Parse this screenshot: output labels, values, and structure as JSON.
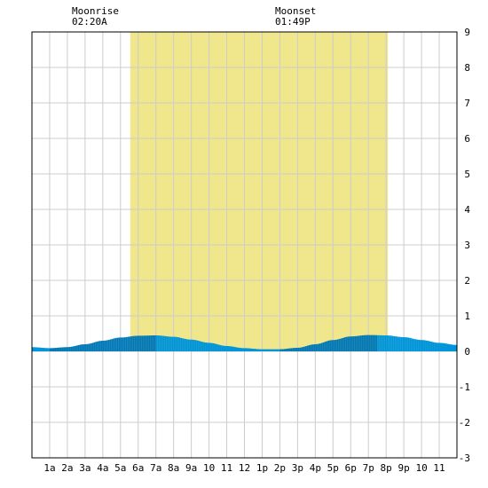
{
  "chart_data": {
    "type": "area",
    "title": "",
    "xlabel": "",
    "ylabel": "",
    "moon": {
      "rise_label": "Moonrise",
      "rise_time": "02:20A",
      "set_label": "Moonset",
      "set_time": "01:49P"
    },
    "x_ticks": [
      "1a",
      "2a",
      "3a",
      "4a",
      "5a",
      "6a",
      "7a",
      "8a",
      "9a",
      "10",
      "11",
      "12",
      "1p",
      "2p",
      "3p",
      "4p",
      "5p",
      "6p",
      "7p",
      "8p",
      "9p",
      "10",
      "11"
    ],
    "y_ticks": [
      "9",
      "8",
      "7",
      "6",
      "5",
      "4",
      "3",
      "2",
      "1",
      "0",
      "-1",
      "-2",
      "-3"
    ],
    "xlim_hours": [
      0,
      24
    ],
    "ylim": [
      -3,
      9
    ],
    "grid": true,
    "daylight_hours": {
      "start": 5.55,
      "end": 20.1,
      "color": "#f0e68c"
    },
    "tide_series": {
      "name": "",
      "x_hours": [
        0,
        1,
        2,
        3,
        4,
        5,
        6,
        7,
        8,
        9,
        10,
        11,
        12,
        13,
        14,
        15,
        16,
        17,
        18,
        19,
        20,
        21,
        22,
        23,
        24
      ],
      "values": [
        0.12,
        0.09,
        0.12,
        0.2,
        0.3,
        0.39,
        0.44,
        0.45,
        0.41,
        0.33,
        0.24,
        0.15,
        0.09,
        0.06,
        0.06,
        0.1,
        0.2,
        0.32,
        0.42,
        0.46,
        0.45,
        0.4,
        0.32,
        0.24,
        0.18
      ]
    },
    "colors": {
      "tide_light": "#0095d9",
      "tide_dark": "#0077b6",
      "grid": "#cccccc",
      "border": "#000000"
    }
  }
}
